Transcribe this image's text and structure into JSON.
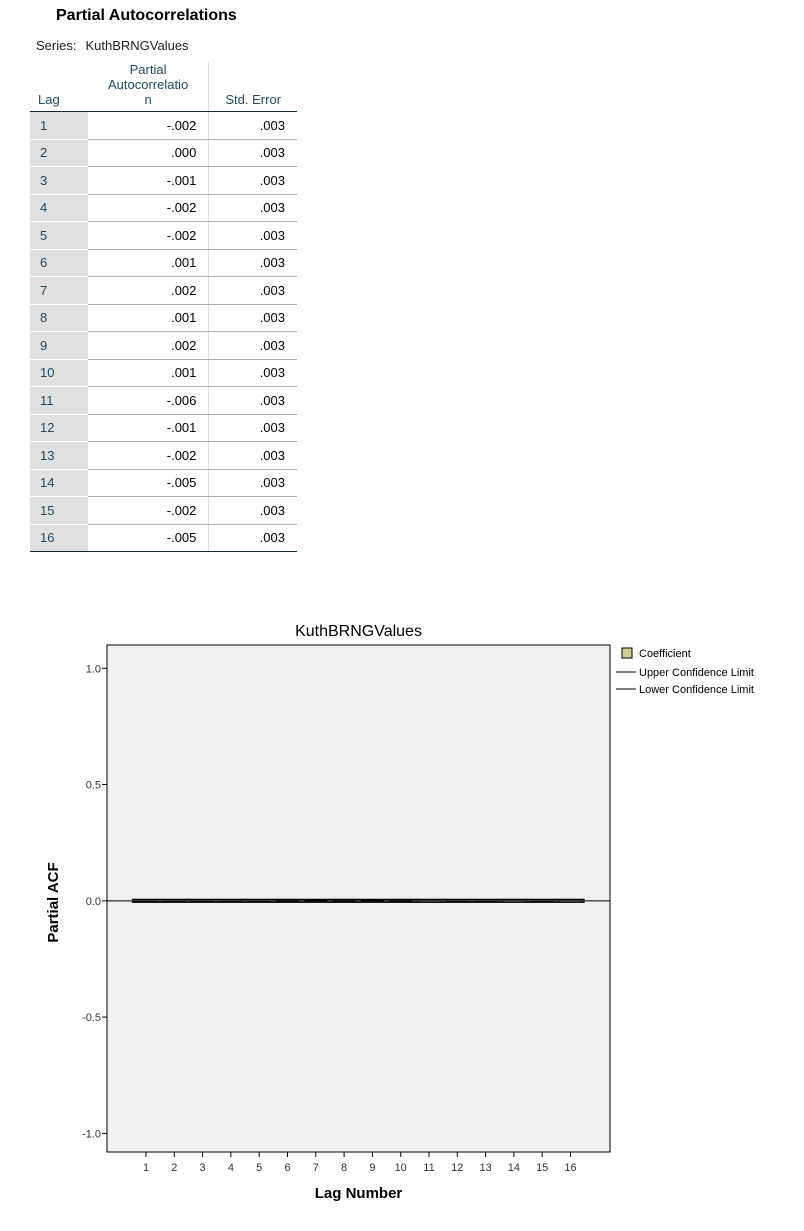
{
  "table": {
    "title": "Partial Autocorrelations",
    "series_label": "Series:",
    "series_name": "KuthBRNGValues",
    "col_lag": "Lag",
    "col_pac": [
      "Partial",
      "Autocorrelatio",
      "n"
    ],
    "col_se": "Std. Error",
    "rows": [
      {
        "lag": "1",
        "pac": "-.002",
        "se": ".003"
      },
      {
        "lag": "2",
        "pac": ".000",
        "se": ".003"
      },
      {
        "lag": "3",
        "pac": "-.001",
        "se": ".003"
      },
      {
        "lag": "4",
        "pac": "-.002",
        "se": ".003"
      },
      {
        "lag": "5",
        "pac": "-.002",
        "se": ".003"
      },
      {
        "lag": "6",
        "pac": ".001",
        "se": ".003"
      },
      {
        "lag": "7",
        "pac": ".002",
        "se": ".003"
      },
      {
        "lag": "8",
        "pac": ".001",
        "se": ".003"
      },
      {
        "lag": "9",
        "pac": ".002",
        "se": ".003"
      },
      {
        "lag": "10",
        "pac": ".001",
        "se": ".003"
      },
      {
        "lag": "11",
        "pac": "-.006",
        "se": ".003"
      },
      {
        "lag": "12",
        "pac": "-.001",
        "se": ".003"
      },
      {
        "lag": "13",
        "pac": "-.002",
        "se": ".003"
      },
      {
        "lag": "14",
        "pac": "-.005",
        "se": ".003"
      },
      {
        "lag": "15",
        "pac": "-.002",
        "se": ".003"
      },
      {
        "lag": "16",
        "pac": "-.005",
        "se": ".003"
      }
    ]
  },
  "chart_data": {
    "type": "bar",
    "title": "KuthBRNGValues",
    "xlabel": "Lag Number",
    "ylabel": "Partial ACF",
    "categories": [
      "1",
      "2",
      "3",
      "4",
      "5",
      "6",
      "7",
      "8",
      "9",
      "10",
      "11",
      "12",
      "13",
      "14",
      "15",
      "16"
    ],
    "yticks": [
      "1.0",
      "0.5",
      "0.0",
      "-0.5",
      "-1.0"
    ],
    "ylim": [
      -1.08,
      1.1
    ],
    "series": [
      {
        "name": "Coefficient",
        "values": [
          -0.002,
          0.0,
          -0.001,
          -0.002,
          -0.002,
          0.001,
          0.002,
          0.001,
          0.002,
          0.001,
          -0.006,
          -0.001,
          -0.002,
          -0.005,
          -0.002,
          -0.005
        ]
      },
      {
        "name": "Upper Confidence Limit",
        "values": [
          0.006,
          0.006,
          0.006,
          0.006,
          0.006,
          0.006,
          0.006,
          0.006,
          0.006,
          0.006,
          0.006,
          0.006,
          0.006,
          0.006,
          0.006,
          0.006
        ]
      },
      {
        "name": "Lower Confidence Limit",
        "values": [
          -0.006,
          -0.006,
          -0.006,
          -0.006,
          -0.006,
          -0.006,
          -0.006,
          -0.006,
          -0.006,
          -0.006,
          -0.006,
          -0.006,
          -0.006,
          -0.006,
          -0.006,
          -0.006
        ]
      }
    ],
    "legend_position": "top-right",
    "grid": false,
    "colors": {
      "coefficient": "#d3ce97",
      "plot_bg": "#f0f0f0",
      "line": "#000000"
    }
  }
}
